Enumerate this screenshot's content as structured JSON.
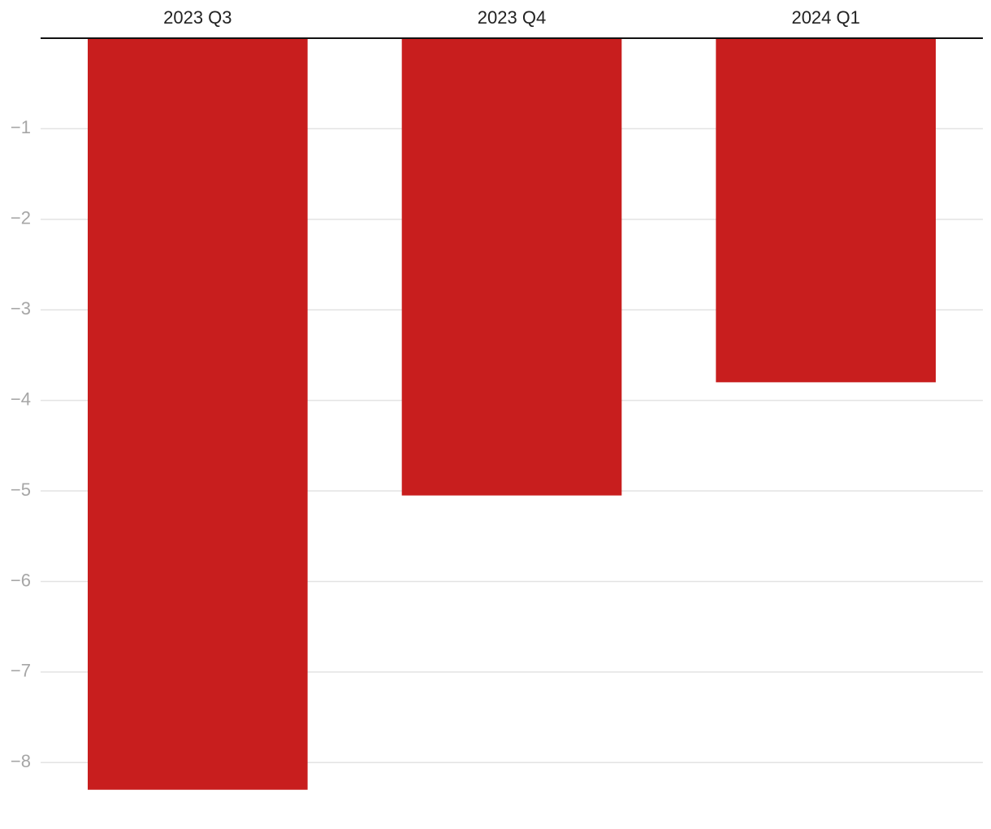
{
  "chart_data": {
    "type": "bar",
    "categories": [
      "2023 Q3",
      "2023 Q4",
      "2024 Q1"
    ],
    "values": [
      -8.3,
      -5.05,
      -3.8
    ],
    "color": "#c81e1e",
    "ylim": [
      -8.5,
      0
    ],
    "yticks": [
      {
        "value": -1,
        "label": "−1"
      },
      {
        "value": -2,
        "label": "−2"
      },
      {
        "value": -3,
        "label": "−3"
      },
      {
        "value": -4,
        "label": "−4"
      },
      {
        "value": -5,
        "label": "−5"
      },
      {
        "value": -6,
        "label": "−6"
      },
      {
        "value": -7,
        "label": "−7"
      },
      {
        "value": -8,
        "label": "−8"
      }
    ],
    "grid": true
  }
}
